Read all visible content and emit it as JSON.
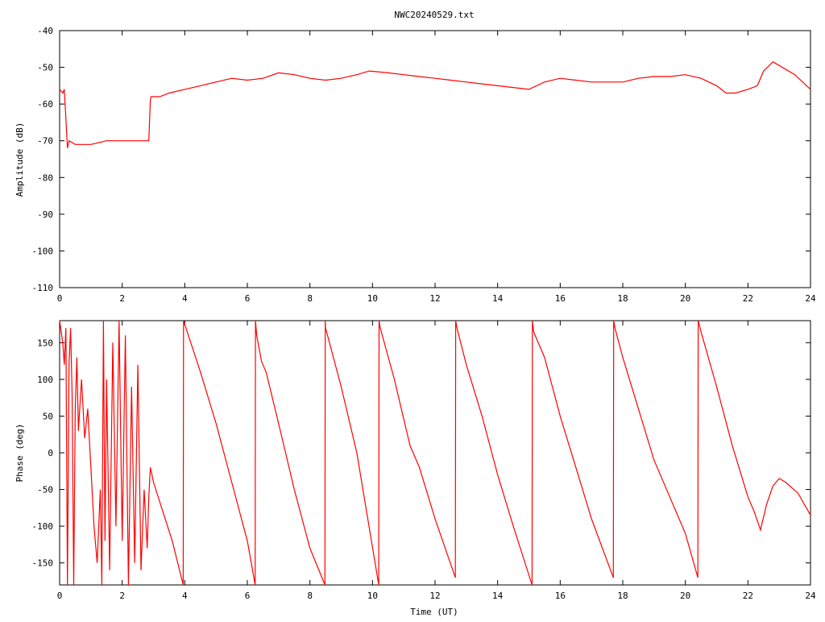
{
  "chart_data": [
    {
      "type": "line",
      "title": "NWC20240529.txt",
      "xlabel": "",
      "ylabel": "Amplitude (dB)",
      "xlim": [
        0,
        24
      ],
      "ylim": [
        -110,
        -40
      ],
      "xticks": [
        "0",
        "2",
        "4",
        "6",
        "8",
        "10",
        "12",
        "14",
        "16",
        "18",
        "20",
        "22",
        "24"
      ],
      "yticks": [
        "-40",
        "-50",
        "-60",
        "-70",
        "-80",
        "-90",
        "-100",
        "-110"
      ],
      "grid": false,
      "series": [
        {
          "color": "#ff0000",
          "x": [
            0,
            0.1,
            0.15,
            0.2,
            0.25,
            0.3,
            0.5,
            1.0,
            1.5,
            2.0,
            2.5,
            2.85,
            2.9,
            2.92,
            3.2,
            3.5,
            4.0,
            4.5,
            5.0,
            5.5,
            6.0,
            6.5,
            7.0,
            7.5,
            8.0,
            8.5,
            9.0,
            9.5,
            9.9,
            10.5,
            11.0,
            11.5,
            12.0,
            12.5,
            13.0,
            13.5,
            14.0,
            14.5,
            15.0,
            15.5,
            16.0,
            16.5,
            17.0,
            17.5,
            18.0,
            18.5,
            19.0,
            19.5,
            20.0,
            20.5,
            21.0,
            21.3,
            21.6,
            22.0,
            22.3,
            22.5,
            22.8,
            23.0,
            23.5,
            24.0
          ],
          "values": [
            -56,
            -57,
            -56,
            -64,
            -72,
            -70,
            -71,
            -71,
            -70,
            -70,
            -70,
            -70,
            -59,
            -58,
            -58,
            -57,
            -56,
            -55,
            -54,
            -53,
            -53.5,
            -53,
            -51.5,
            -52,
            -53,
            -53.5,
            -53,
            -52,
            -51,
            -51.5,
            -52,
            -52.5,
            -53,
            -53.5,
            -54,
            -54.5,
            -55,
            -55.5,
            -56,
            -54,
            -53,
            -53.5,
            -54,
            -54,
            -54,
            -53,
            -52.5,
            -52.5,
            -52,
            -53,
            -55,
            -57,
            -57,
            -56,
            -55,
            -51,
            -48.5,
            -49.5,
            -52,
            -56
          ]
        }
      ]
    },
    {
      "type": "line",
      "title": "",
      "xlabel": "Time (UT)",
      "ylabel": "Phase (deg)",
      "xlim": [
        0,
        24
      ],
      "ylim": [
        -180,
        180
      ],
      "xticks": [
        "0",
        "2",
        "4",
        "6",
        "8",
        "10",
        "12",
        "14",
        "16",
        "18",
        "20",
        "22",
        "24"
      ],
      "yticks": [
        "150",
        "100",
        "50",
        "0",
        "-50",
        "-100",
        "-150"
      ],
      "grid": false,
      "series": [
        {
          "color": "#ff0000",
          "x": [
            0,
            0.1,
            0.15,
            0.2,
            0.25,
            0.3,
            0.35,
            0.4,
            0.45,
            0.5,
            0.55,
            0.6,
            0.7,
            0.8,
            0.9,
            1.0,
            1.1,
            1.2,
            1.3,
            1.35,
            1.4,
            1.45,
            1.5,
            1.6,
            1.7,
            1.8,
            1.9,
            2.0,
            2.1,
            2.2,
            2.3,
            2.4,
            2.5,
            2.6,
            2.7,
            2.8,
            2.85,
            2.9,
            3.0,
            3.3,
            3.6,
            3.95,
            3.96,
            4.0,
            4.5,
            5.0,
            5.5,
            6.0,
            6.25,
            6.26,
            6.3,
            6.45,
            6.5,
            6.6,
            7.0,
            7.5,
            8.0,
            8.48,
            8.49,
            8.5,
            9.0,
            9.5,
            10.2,
            10.21,
            10.25,
            10.7,
            11.2,
            11.5,
            12.0,
            12.65,
            12.66,
            12.7,
            13.0,
            13.5,
            14.0,
            14.5,
            15.1,
            15.11,
            15.15,
            15.5,
            16.0,
            16.5,
            17.0,
            17.7,
            17.71,
            17.75,
            18.0,
            18.5,
            19.0,
            19.5,
            20.0,
            20.4,
            20.41,
            20.5,
            21.0,
            21.5,
            22.0,
            22.2,
            22.4,
            22.6,
            22.8,
            23.0,
            23.2,
            23.6,
            24.0
          ],
          "values": [
            180,
            150,
            120,
            170,
            -180,
            120,
            170,
            80,
            -180,
            60,
            130,
            30,
            100,
            20,
            60,
            -20,
            -100,
            -150,
            -50,
            -180,
            180,
            -120,
            100,
            -160,
            150,
            -100,
            180,
            -120,
            160,
            -180,
            90,
            -150,
            120,
            -160,
            -50,
            -130,
            -60,
            -20,
            -40,
            -80,
            -120,
            -180,
            180,
            175,
            110,
            40,
            -40,
            -120,
            -180,
            180,
            160,
            125,
            120,
            110,
            40,
            -50,
            -130,
            -180,
            180,
            170,
            90,
            0,
            -180,
            180,
            170,
            100,
            10,
            -20,
            -90,
            -170,
            180,
            170,
            120,
            50,
            -30,
            -100,
            -180,
            180,
            165,
            130,
            50,
            -20,
            -90,
            -170,
            180,
            170,
            130,
            60,
            -10,
            -60,
            -110,
            -170,
            180,
            165,
            90,
            10,
            -60,
            -80,
            -105,
            -70,
            -45,
            -35,
            -40,
            -55,
            -85
          ]
        }
      ]
    }
  ]
}
